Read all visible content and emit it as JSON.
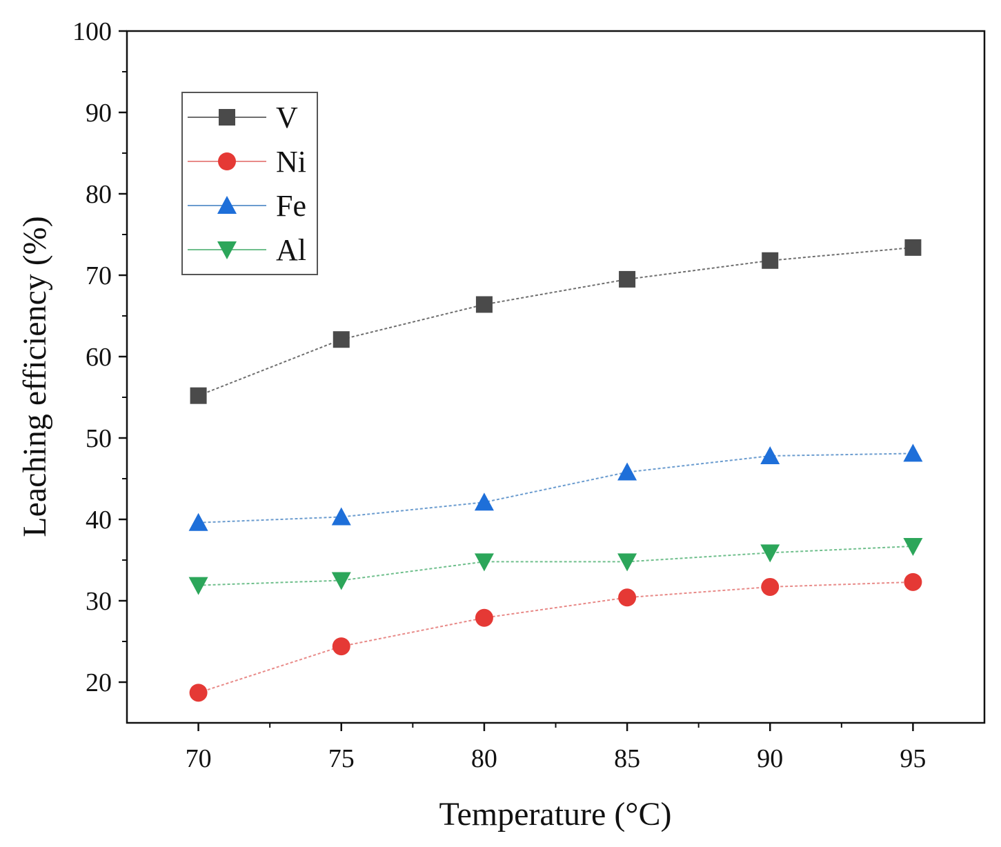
{
  "chart_data": {
    "type": "line",
    "title": "",
    "xlabel": "Temperature (°C)",
    "ylabel": "Leaching efficiency (%)",
    "x": [
      70,
      75,
      80,
      85,
      90,
      95
    ],
    "xlim": [
      67.5,
      97.5
    ],
    "ylim": [
      15,
      100
    ],
    "xticks": [
      70,
      75,
      80,
      85,
      90,
      95
    ],
    "yticks": [
      20,
      30,
      40,
      50,
      60,
      70,
      80,
      90,
      100
    ],
    "grid": false,
    "legend_position": "top-left",
    "series": [
      {
        "name": "V",
        "marker": "square",
        "color": "#4a4a4a",
        "line_color": "#6e6e6e",
        "values": [
          55.2,
          62.1,
          66.4,
          69.5,
          71.8,
          73.4
        ]
      },
      {
        "name": "Ni",
        "marker": "circle",
        "color": "#e53935",
        "line_color": "#e88a88",
        "values": [
          18.7,
          24.4,
          27.9,
          30.4,
          31.7,
          32.3
        ]
      },
      {
        "name": "Fe",
        "marker": "triangle-up",
        "color": "#1e6fd9",
        "line_color": "#6b9ccf",
        "values": [
          39.6,
          40.3,
          42.1,
          45.8,
          47.8,
          48.1
        ]
      },
      {
        "name": "Al",
        "marker": "triangle-down",
        "color": "#2ca65a",
        "line_color": "#6fbf8c",
        "values": [
          31.9,
          32.5,
          34.8,
          34.8,
          35.9,
          36.7
        ]
      }
    ]
  }
}
